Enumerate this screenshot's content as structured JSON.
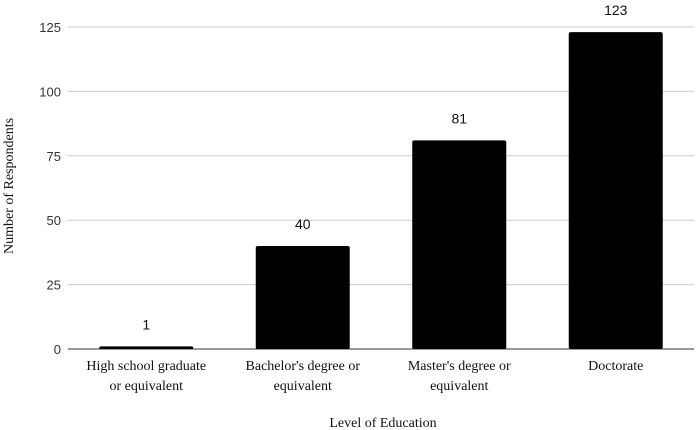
{
  "chart_data": {
    "type": "bar",
    "categories": [
      [
        "High school graduate",
        "or equivalent"
      ],
      [
        "Bachelor's degree or",
        "equivalent"
      ],
      [
        "Master's degree or",
        "equivalent"
      ],
      [
        "Doctorate"
      ]
    ],
    "values": [
      1,
      40,
      81,
      123
    ],
    "data_labels": [
      "1",
      "40",
      "81",
      "123"
    ],
    "title": "",
    "xlabel": "Level of Education",
    "ylabel": "Number of Respondents",
    "ylim": [
      0,
      125
    ],
    "yticks": [
      0,
      25,
      50,
      75,
      100,
      125
    ],
    "grid": true,
    "bar_color": "#000000"
  }
}
